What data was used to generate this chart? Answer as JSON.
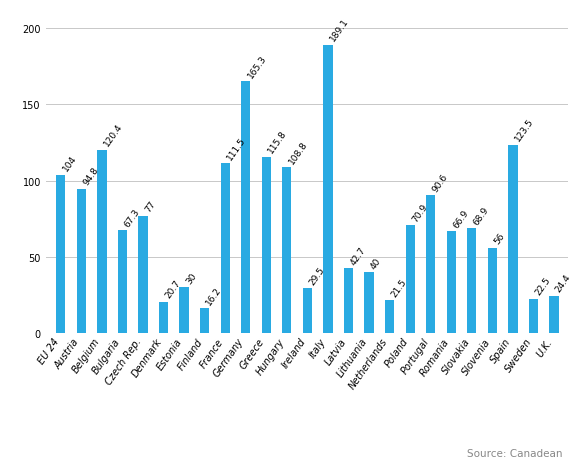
{
  "categories": [
    "EU 24",
    "Austria",
    "Belgium",
    "Bulgaria",
    "Czech Rep.",
    "Denmark",
    "Estonia",
    "Finland",
    "France",
    "Germany",
    "Greece",
    "Hungary",
    "Ireland",
    "Italy",
    "Latvia",
    "Lithuania",
    "Netherlands",
    "Poland",
    "Portugal",
    "Romania",
    "Slovakia",
    "Slovenia",
    "Spain",
    "Sweden",
    "U.K."
  ],
  "values": [
    104,
    94.8,
    120.4,
    67.3,
    77,
    20.7,
    30,
    16.2,
    111.5,
    165.3,
    115.8,
    108.8,
    29.5,
    189.1,
    42.7,
    40,
    21.5,
    70.9,
    90.6,
    66.9,
    68.9,
    56,
    123.5,
    22.5,
    24.4
  ],
  "bar_color": "#29aae2",
  "background_color": "#ffffff",
  "grid_color": "#c8c8c8",
  "ylim": [
    0,
    210
  ],
  "yticks": [
    0,
    50,
    100,
    150,
    200
  ],
  "label_fontsize": 6.5,
  "tick_fontsize": 7.0,
  "xlabel_rotation": 55,
  "bar_width": 0.45,
  "source_text": "Source: Canadean",
  "source_fontsize": 7.5
}
